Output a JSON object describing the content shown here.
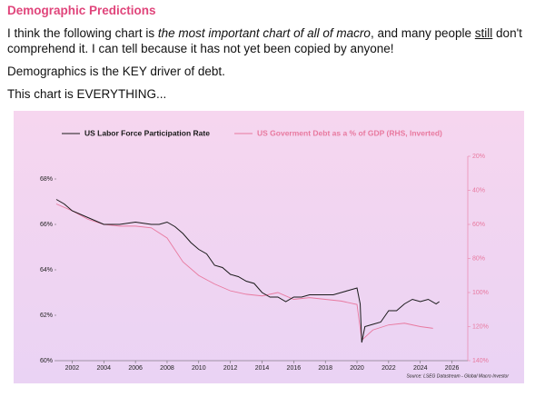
{
  "header": {
    "title": "Demographic Predictions"
  },
  "intro": [
    "I think the following chart is ",
    "the most important chart of all of macro",
    ", and many people ",
    "still",
    " don't comprehend it. I can tell because it has not yet been copied by anyone!"
  ],
  "paragraphs": [
    "Demographics is the KEY driver of debt.",
    "This chart is EVERYTHING..."
  ],
  "chart_data": {
    "type": "line",
    "source": "Source: LSEG Datastream - Global Macro Investor",
    "xlim": [
      2001,
      2027
    ],
    "xticks": [
      2002,
      2004,
      2006,
      2008,
      2010,
      2012,
      2014,
      2016,
      2018,
      2020,
      2022,
      2024,
      2026
    ],
    "ylim": [
      60,
      69
    ],
    "yticks": [
      {
        "value": 60,
        "label": "60%"
      },
      {
        "value": 62,
        "label": "62%"
      },
      {
        "value": 64,
        "label": "64%"
      },
      {
        "value": 66,
        "label": "66%"
      },
      {
        "value": 68,
        "label": "68%"
      }
    ],
    "y2lim": [
      140,
      20
    ],
    "y2ticks": [
      {
        "value": 20,
        "label": "20%"
      },
      {
        "value": 40,
        "label": "40%"
      },
      {
        "value": 60,
        "label": "60%"
      },
      {
        "value": 80,
        "label": "80%"
      },
      {
        "value": 100,
        "label": "100%"
      },
      {
        "value": 120,
        "label": "120%"
      },
      {
        "value": 140,
        "label": "140%"
      }
    ],
    "series": [
      {
        "name": "US Labor Force Participation Rate",
        "color": "#1a1a1a",
        "x": [
          2001.0,
          2001.5,
          2002,
          2003,
          2004,
          2005,
          2006,
          2007,
          2007.5,
          2008,
          2008.5,
          2009,
          2009.5,
          2010,
          2010.5,
          2011,
          2011.5,
          2012,
          2012.5,
          2013,
          2013.5,
          2014,
          2014.5,
          2015,
          2015.5,
          2016,
          2016.5,
          2017,
          2017.5,
          2018,
          2018.5,
          2019,
          2019.5,
          2020,
          2020.2,
          2020.3,
          2020.5,
          2021,
          2021.5,
          2022,
          2022.5,
          2023,
          2023.5,
          2024,
          2024.5,
          2025,
          2025.2
        ],
        "values": [
          67.1,
          66.9,
          66.6,
          66.3,
          66.0,
          66.0,
          66.1,
          66.0,
          66.0,
          66.1,
          65.9,
          65.6,
          65.2,
          64.9,
          64.7,
          64.2,
          64.1,
          63.8,
          63.7,
          63.5,
          63.4,
          63.0,
          62.8,
          62.8,
          62.6,
          62.8,
          62.8,
          62.9,
          62.9,
          62.9,
          62.9,
          63.0,
          63.1,
          63.2,
          62.5,
          60.8,
          61.5,
          61.6,
          61.7,
          62.2,
          62.2,
          62.5,
          62.7,
          62.6,
          62.7,
          62.5,
          62.6
        ]
      },
      {
        "name": "US Goverment Debt as a % of GDP (RHS, Inverted)",
        "color": "#e8799f",
        "axis": "y2",
        "x": [
          2001,
          2002,
          2003,
          2004,
          2005,
          2006,
          2007,
          2008,
          2009,
          2010,
          2011,
          2012,
          2013,
          2014,
          2015,
          2016,
          2017,
          2018,
          2019,
          2020,
          2020.3,
          2021,
          2022,
          2023,
          2024,
          2024.8
        ],
        "values": [
          48,
          52,
          57,
          60,
          61,
          61,
          62,
          68,
          82,
          90,
          95,
          99,
          101,
          102,
          100,
          104,
          103,
          104,
          105,
          107,
          128,
          122,
          119,
          118,
          120,
          121
        ]
      }
    ]
  }
}
